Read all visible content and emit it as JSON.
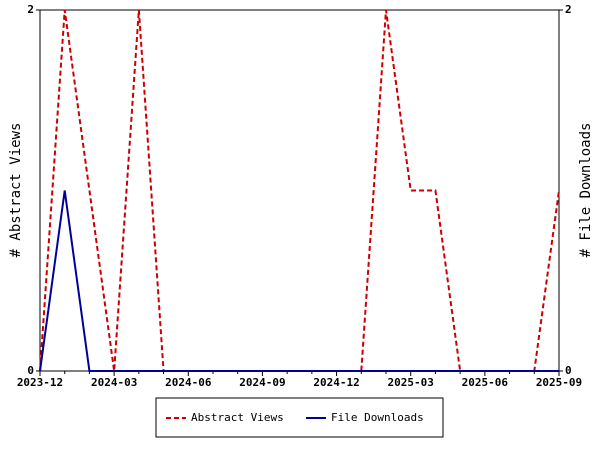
{
  "chart_data": {
    "type": "line",
    "x": [
      "2023-12",
      null,
      null,
      "2024-03",
      null,
      null,
      "2024-06",
      null,
      null,
      "2024-09",
      null,
      null,
      "2024-12",
      null,
      null,
      "2025-03",
      null,
      null,
      "2025-06",
      null,
      null,
      "2025-09"
    ],
    "series": [
      {
        "name": "Abstract Views",
        "color": "#cc0000",
        "dashed": true,
        "values": [
          0,
          2,
          1,
          0,
          2,
          0,
          0,
          0,
          0,
          0,
          0,
          0,
          0,
          0,
          2,
          1,
          1,
          0,
          0,
          0,
          0,
          1
        ]
      },
      {
        "name": "File Downloads",
        "color": "#000099",
        "dashed": false,
        "axis": "y2",
        "values": [
          0,
          1,
          0,
          0,
          0,
          0,
          0,
          0,
          0,
          0,
          0,
          0,
          0,
          0,
          0,
          0,
          0,
          0,
          0,
          0,
          0,
          0
        ]
      }
    ],
    "ylabel": "# Abstract Views",
    "y2label": "# File Downloads",
    "ylim": [
      0,
      2
    ],
    "yticks": [
      0,
      2
    ],
    "y2lim": [
      0,
      2
    ],
    "y2ticks": [
      0,
      2
    ],
    "legend": "bottom"
  }
}
